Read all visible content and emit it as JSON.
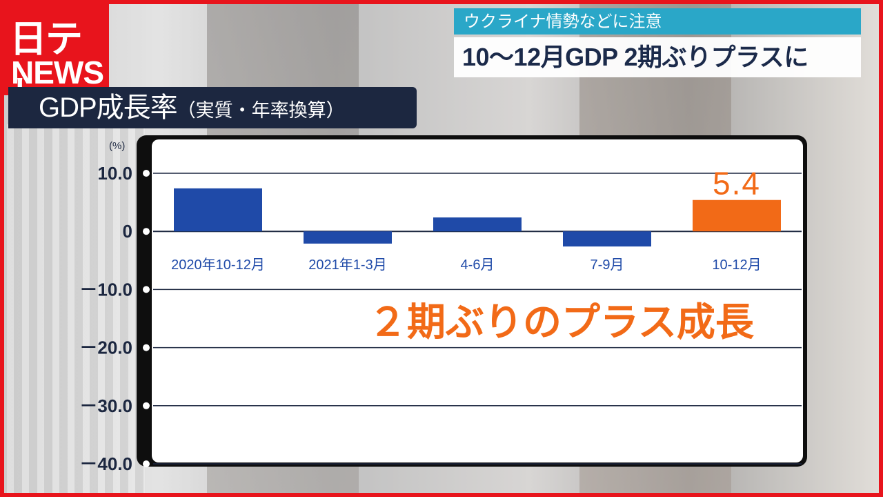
{
  "logo": {
    "line1": "日テレ",
    "line2": "NEWS"
  },
  "caption": {
    "sub": "ウクライナ情勢などに注意",
    "main": "10～12月GDP 2期ぶりプラスに"
  },
  "chart_title": {
    "main": "GDP成長率",
    "paren": "（実質・年率換算）"
  },
  "colors": {
    "normal_bar": "#1f4aa8",
    "highlight_bar": "#f26a17",
    "title_bg": "#1c2740",
    "caption_sub_bg": "#2aa7c8",
    "brand_red": "#e8141c"
  },
  "chart_data": {
    "type": "bar",
    "unit_label": "(%)",
    "categories": [
      "2020年10-12月",
      "2021年1-3月",
      "4-6月",
      "7-9月",
      "10-12月"
    ],
    "values": [
      7.4,
      -2.1,
      2.4,
      -2.6,
      5.4
    ],
    "highlight_index": 4,
    "value_labels": [
      "",
      "",
      "",
      "",
      "5.4"
    ],
    "ylim": [
      -40.0,
      10.0
    ],
    "yticks": [
      10.0,
      0,
      -10.0,
      -20.0,
      -30.0,
      -40.0
    ],
    "ytick_labels": [
      "10.0",
      "0",
      "－10.0",
      "－20.0",
      "－30.0",
      "－40.0"
    ],
    "grid": true,
    "annotation": "２期ぶりのプラス成長"
  }
}
